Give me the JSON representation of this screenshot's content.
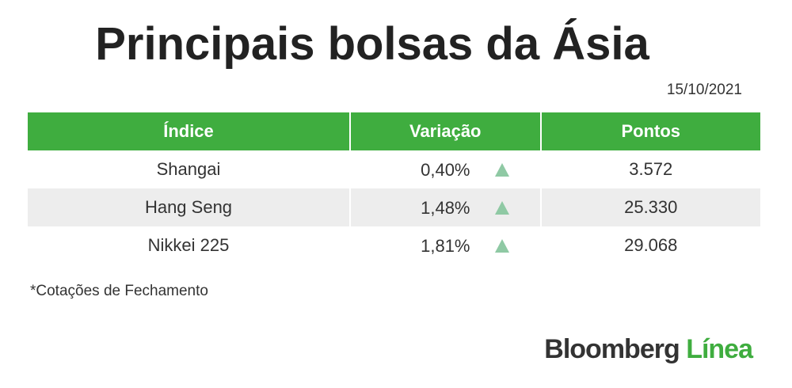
{
  "header": {
    "title": "Principais bolsas da Ásia",
    "date": "15/10/2021"
  },
  "table": {
    "columns": [
      "Índice",
      "Variação",
      "Pontos"
    ],
    "rows": [
      [
        "Shangai",
        "0,40%",
        "3.572"
      ],
      [
        "Hang Seng",
        "1,48%",
        "25.330"
      ],
      [
        "Nikkei 225",
        "1,81%",
        "29.068"
      ]
    ]
  },
  "footnote": "*Cotações de Fechamento",
  "brand": {
    "name": "Bloomberg",
    "suffix": "Línea"
  }
}
